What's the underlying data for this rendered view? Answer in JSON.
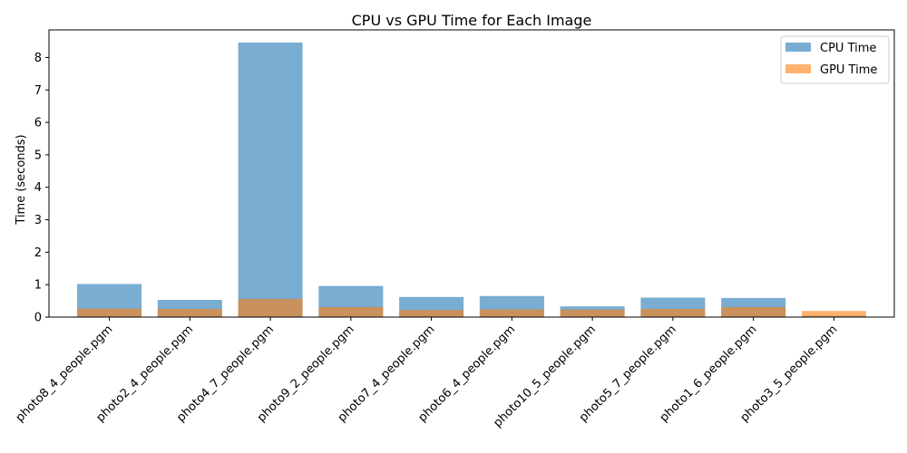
{
  "chart_data": {
    "type": "bar",
    "title": "CPU vs GPU Time for Each Image",
    "xlabel": "",
    "ylabel": "Time (seconds)",
    "categories": [
      "photo8_4_people.pgm",
      "photo2_4_people.pgm",
      "photo4_7_people.pgm",
      "photo9_2_people.pgm",
      "photo7_4_people.pgm",
      "photo6_4_people.pgm",
      "photo10_5_people.pgm",
      "photo5_7_people.pgm",
      "photo1_6_people.pgm",
      "photo3_5_people.pgm"
    ],
    "series": [
      {
        "name": "CPU Time",
        "color": "#1f77b4",
        "opacity": 0.6,
        "values": [
          1.02,
          0.53,
          8.46,
          0.96,
          0.62,
          0.65,
          0.33,
          0.6,
          0.59,
          0.04
        ]
      },
      {
        "name": "GPU Time",
        "color": "#ff7f0e",
        "opacity": 0.6,
        "values": [
          0.26,
          0.25,
          0.56,
          0.31,
          0.22,
          0.24,
          0.23,
          0.25,
          0.31,
          0.19
        ]
      }
    ],
    "ylim": [
      0,
      8.85
    ],
    "yticks": [
      "0",
      "1",
      "2",
      "3",
      "4",
      "5",
      "6",
      "7",
      "8"
    ],
    "legend_position": "top-right",
    "grid": false,
    "x_tick_rotation": 45
  }
}
